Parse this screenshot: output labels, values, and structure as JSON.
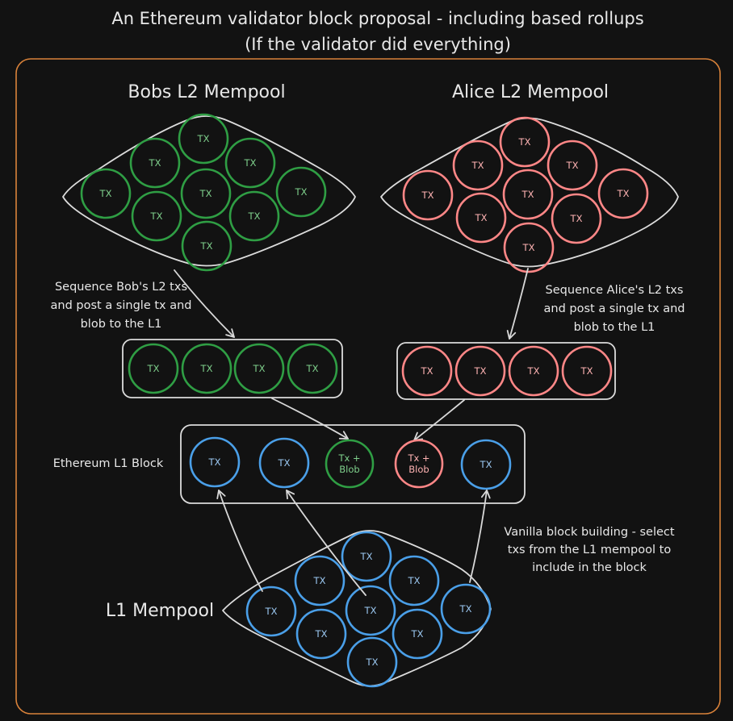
{
  "title": {
    "line1": "An Ethereum validator block proposal - including based rollups",
    "line2": "(If the validator did everything)"
  },
  "colors": {
    "background": "#121212",
    "frame": "#d9823a",
    "outline": "#dcdcdc",
    "green": "#2f9e44",
    "green_text": "#7fd08c",
    "red": "#ff8787",
    "red_text": "#ffb3b3",
    "blue": "#4a9fe8",
    "blue_text": "#9cc9f3"
  },
  "bob": {
    "heading": "Bobs L2 Mempool",
    "tx_label": "TX",
    "batch_note": [
      "Sequence Bob's L2 txs",
      "and post a single tx and",
      "blob to the L1"
    ]
  },
  "alice": {
    "heading": "Alice L2 Mempool",
    "tx_label": "TX",
    "batch_note": [
      "Sequence Alice's L2 txs",
      "and post a single tx and",
      "blob to the L1"
    ]
  },
  "block": {
    "label": "Ethereum L1 Block",
    "tx_label": "TX",
    "bob_entry": [
      "Tx +",
      "Blob"
    ],
    "alice_entry": [
      "Tx +",
      "Blob"
    ]
  },
  "l1": {
    "heading": "L1 Mempool",
    "tx_label": "TX",
    "building_note": [
      "Vanilla block building - select",
      "txs from the L1 mempool to",
      "include in the block"
    ]
  }
}
